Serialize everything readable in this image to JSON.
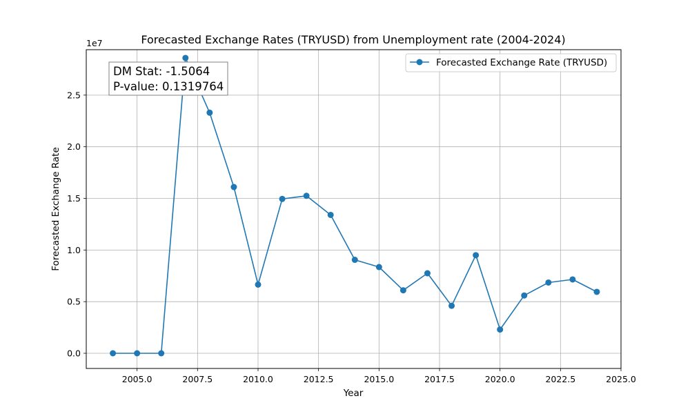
{
  "chart_data": {
    "type": "line",
    "title": "Forecasted Exchange Rates (TRYUSD) from Unemployment rate (2004-2024)",
    "xlabel": "Year",
    "ylabel": "Forecasted Exchange Rate",
    "y_offset_label": "1e7",
    "xlim": [
      2002.9,
      2025.0
    ],
    "ylim": [
      -1470000,
      29400000
    ],
    "x_ticks": [
      2005.0,
      2007.5,
      2010.0,
      2012.5,
      2015.0,
      2017.5,
      2020.0,
      2022.5,
      2025.0
    ],
    "x_tick_labels": [
      "2005.0",
      "2007.5",
      "2010.0",
      "2012.5",
      "2015.0",
      "2017.5",
      "2020.0",
      "2022.5",
      "2025.0"
    ],
    "y_ticks": [
      0,
      5000000,
      10000000,
      15000000,
      20000000,
      25000000
    ],
    "y_tick_labels": [
      "0.0",
      "0.5",
      "1.0",
      "1.5",
      "2.0",
      "2.5"
    ],
    "grid": true,
    "legend_position": "top-right",
    "series": [
      {
        "name": "Forecasted Exchange Rate (TRYUSD)",
        "color": "#1f77b4",
        "x": [
          2004,
          2005,
          2006,
          2007,
          2008,
          2009,
          2010,
          2011,
          2012,
          2013,
          2014,
          2015,
          2016,
          2017,
          2018,
          2019,
          2020,
          2021,
          2022,
          2023,
          2024
        ],
        "y": [
          0,
          0,
          0,
          28600000,
          23300000,
          16100000,
          6650000,
          14950000,
          15250000,
          13400000,
          9050000,
          8350000,
          6100000,
          7750000,
          4600000,
          9500000,
          2300000,
          5600000,
          6850000,
          7150000,
          5950000
        ]
      }
    ],
    "annotations": [
      {
        "text": "DM Stat: -1.5064"
      },
      {
        "text": "P-value: 0.1319764"
      }
    ]
  }
}
